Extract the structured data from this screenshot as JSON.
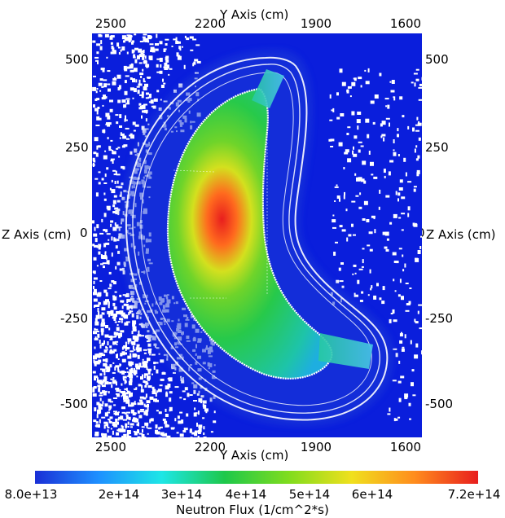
{
  "axes": {
    "top_title": "Y Axis (cm)",
    "bottom_title": "Y Axis (cm)",
    "left_title": "Z Axis (cm)",
    "right_title": "Z Axis (cm)",
    "y_ticks": [
      "2500",
      "2200",
      "1900",
      "1600"
    ],
    "z_ticks": [
      "500",
      "250",
      "0",
      "-250",
      "-500"
    ]
  },
  "colorbar": {
    "title": "Neutron Flux (1/cm^2*s)",
    "ticks": [
      "8.0e+13",
      "2e+14",
      "3e+14",
      "4e+14",
      "5e+14",
      "6e+14",
      "7.2e+14"
    ],
    "colors": [
      "#1a2fd6",
      "#1e90ff",
      "#1ee6e6",
      "#1ec84a",
      "#7fdc1e",
      "#f0e01e",
      "#ff8c1e",
      "#e81e1e"
    ]
  },
  "plot": {
    "background_color": "#0a1edc"
  }
}
